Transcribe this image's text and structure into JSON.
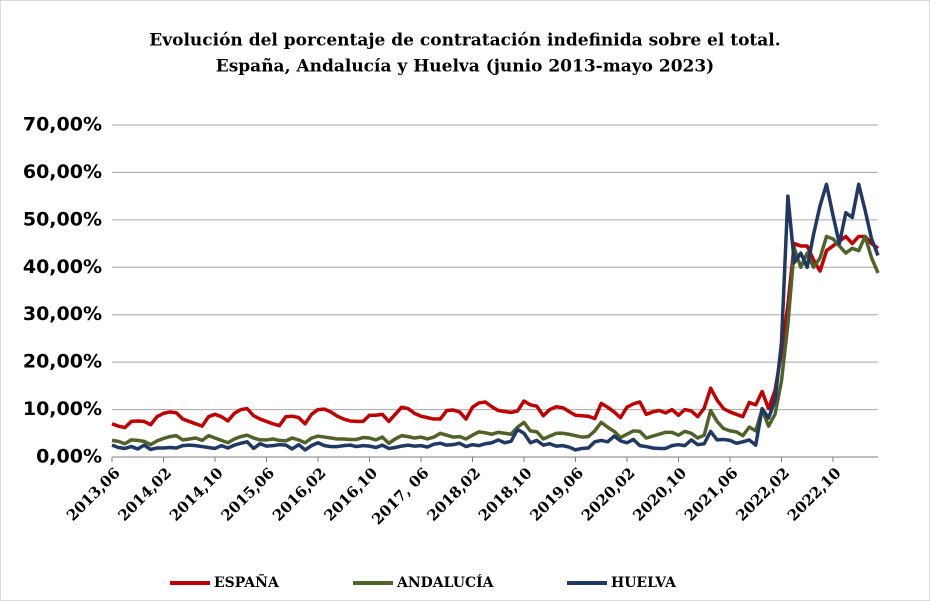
{
  "chart_data": {
    "type": "line",
    "title": "Evolución del porcentaje de contratación indefinida sobre el total.",
    "subtitle": "España, Andalucía y Huelva (junio 2013-mayo 2023)",
    "categories": [
      "2013,06",
      null,
      null,
      null,
      null,
      null,
      null,
      null,
      "2014,02",
      null,
      null,
      null,
      null,
      null,
      null,
      null,
      "2014,10",
      null,
      null,
      null,
      null,
      null,
      null,
      null,
      "2015,06",
      null,
      null,
      null,
      null,
      null,
      null,
      null,
      "2016,02",
      null,
      null,
      null,
      null,
      null,
      null,
      null,
      "2016,10",
      null,
      null,
      null,
      null,
      null,
      null,
      null,
      "2017, 06",
      null,
      null,
      null,
      null,
      null,
      null,
      null,
      "2018,02",
      null,
      null,
      null,
      null,
      null,
      null,
      null,
      "2018,10",
      null,
      null,
      null,
      null,
      null,
      null,
      null,
      "2019,06",
      null,
      null,
      null,
      null,
      null,
      null,
      null,
      "2020,02",
      null,
      null,
      null,
      null,
      null,
      null,
      null,
      "2020,10",
      null,
      null,
      null,
      null,
      null,
      null,
      null,
      "2021,06",
      null,
      null,
      null,
      null,
      null,
      null,
      null,
      "2022,02",
      null,
      null,
      null,
      null,
      null,
      null,
      null,
      "2022,10",
      null,
      null,
      null,
      null,
      null,
      null,
      null
    ],
    "series": [
      {
        "name": "ESPAÑA",
        "color": "#c00000",
        "values": [
          7,
          6.5,
          6.2,
          7.5,
          7.6,
          7.5,
          6.8,
          8.5,
          9.2,
          9.5,
          9.3,
          8,
          7.5,
          7,
          6.5,
          8.5,
          9,
          8.5,
          7.6,
          9.2,
          10,
          10.2,
          8.7,
          8,
          7.5,
          7,
          6.6,
          8.5,
          8.6,
          8.3,
          7,
          9,
          10,
          10.1,
          9.5,
          8.6,
          8,
          7.6,
          7.5,
          7.5,
          8.8,
          8.8,
          9,
          7.5,
          9,
          10.5,
          10.2,
          9.2,
          8.6,
          8.3,
          8,
          8,
          9.8,
          9.9,
          9.5,
          8,
          10.5,
          11.4,
          11.6,
          10.6,
          9.8,
          9.6,
          9.4,
          9.7,
          11.8,
          11,
          10.7,
          8.7,
          10,
          10.6,
          10.4,
          9.6,
          8.8,
          8.7,
          8.6,
          8.1,
          11.3,
          10.5,
          9.5,
          8.3,
          10.5,
          11.2,
          11.6,
          9,
          9.5,
          9.8,
          9.3,
          10,
          8.8,
          10,
          9.7,
          8.5,
          10.3,
          14.5,
          12,
          10.2,
          9.5,
          9,
          8.5,
          11.5,
          11,
          13.8,
          10.2,
          14,
          22,
          32,
          45,
          44.5,
          44.5,
          41.5,
          39.2,
          43.5,
          44.5,
          45.5,
          46.5,
          45,
          46.5,
          46.5,
          45,
          44
        ]
      },
      {
        "name": "ANDALUCÍA",
        "color": "#4f6228",
        "values": [
          3.5,
          3.3,
          2.8,
          3.6,
          3.5,
          3.3,
          2.6,
          3.4,
          3.9,
          4.3,
          4.5,
          3.6,
          3.8,
          4,
          3.5,
          4.5,
          4,
          3.5,
          3,
          3.8,
          4.3,
          4.6,
          4,
          3.6,
          3.6,
          3.8,
          3.5,
          3.4,
          4,
          3.6,
          3,
          4,
          4.4,
          4.2,
          4,
          3.8,
          3.8,
          3.7,
          3.7,
          4.1,
          4,
          3.6,
          4.2,
          2.9,
          3.8,
          4.5,
          4.3,
          4,
          4.2,
          3.8,
          4.2,
          5,
          4.6,
          4.2,
          4.3,
          3.8,
          4.6,
          5.3,
          5.1,
          4.8,
          5.2,
          5,
          4.8,
          6.3,
          7.3,
          5.5,
          5.3,
          3.8,
          4.4,
          5,
          5,
          4.8,
          4.5,
          4.2,
          4.3,
          5.5,
          7.3,
          6.3,
          5.4,
          4.1,
          4.8,
          5.5,
          5.4,
          4,
          4.4,
          4.8,
          5.2,
          5.2,
          4.6,
          5.4,
          5,
          4,
          4.6,
          9.8,
          7.5,
          6,
          5.5,
          5.3,
          4.5,
          6.3,
          5.5,
          10,
          6.5,
          9,
          16,
          28,
          44,
          40,
          43,
          40,
          42,
          46.5,
          46,
          44.5,
          43,
          44,
          43.5,
          46.5,
          42,
          38.8
        ]
      },
      {
        "name": "HUELVA",
        "color": "#1f3864",
        "values": [
          2.5,
          2,
          1.8,
          2.2,
          1.7,
          2.5,
          1.6,
          1.9,
          1.9,
          2,
          1.9,
          2.4,
          2.5,
          2.4,
          2.2,
          2,
          1.8,
          2.4,
          1.9,
          2.5,
          2.9,
          3.2,
          1.8,
          2.8,
          2.3,
          2.4,
          2.6,
          2.5,
          1.7,
          2.6,
          1.5,
          2.4,
          3,
          2.4,
          2.2,
          2.2,
          2.4,
          2.5,
          2.2,
          2.4,
          2.3,
          2,
          2.5,
          1.8,
          2,
          2.3,
          2.5,
          2.3,
          2.4,
          2.1,
          2.7,
          2.9,
          2.5,
          2.6,
          2.9,
          2.2,
          2.6,
          2.4,
          2.8,
          3,
          3.6,
          3,
          3.3,
          5.8,
          5,
          3,
          3.5,
          2.5,
          2.8,
          2.3,
          2.4,
          2.1,
          1.5,
          1.8,
          1.9,
          3.2,
          3.5,
          3.2,
          4.4,
          3.4,
          3,
          3.7,
          2.4,
          2.2,
          1.9,
          1.8,
          1.8,
          2.4,
          2.6,
          2.4,
          3.6,
          2.6,
          2.8,
          5.4,
          3.6,
          3.7,
          3.5,
          2.9,
          3.2,
          3.6,
          2.5,
          10.2,
          8.2,
          12,
          24,
          55,
          41,
          43,
          40,
          47,
          53,
          57.5,
          51,
          45,
          51.5,
          50.5,
          57.5,
          52,
          46,
          42.5
        ]
      }
    ],
    "ylim": [
      0,
      70
    ],
    "yticks": [
      {
        "value": 0,
        "label": "0,00%"
      },
      {
        "value": 10,
        "label": "10,00%"
      },
      {
        "value": 20,
        "label": "20,00%"
      },
      {
        "value": 30,
        "label": "30,00%"
      },
      {
        "value": 40,
        "label": "40,00%"
      },
      {
        "value": 50,
        "label": "50,00%"
      },
      {
        "value": 60,
        "label": "60,00%"
      },
      {
        "value": 70,
        "label": "70,00%"
      }
    ],
    "grid": true,
    "legend": "bottom"
  }
}
